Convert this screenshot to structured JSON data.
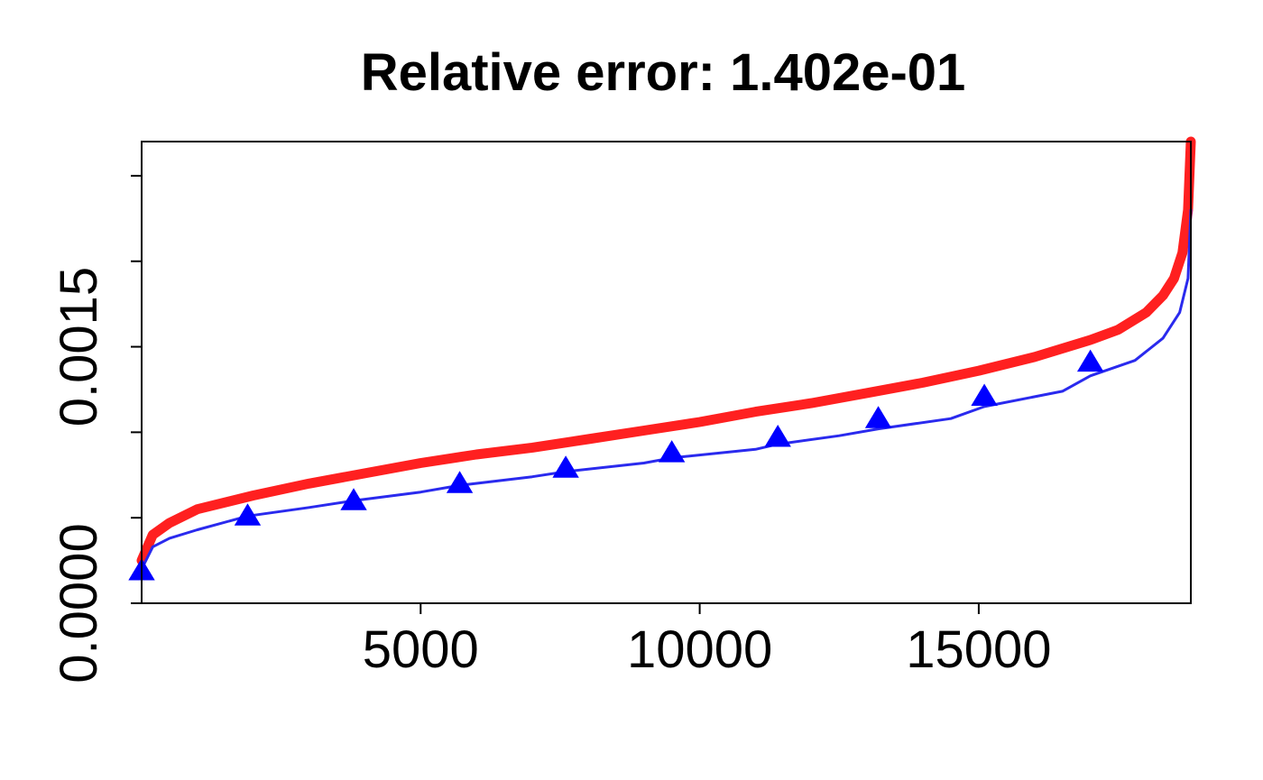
{
  "chart_data": {
    "type": "line",
    "title": "Relative error:  1.402e-01",
    "xlabel": "",
    "ylabel": "",
    "xlim": [
      1,
      18800
    ],
    "ylim": [
      0.0,
      0.0027
    ],
    "x_ticks": [
      5000,
      10000,
      15000
    ],
    "x_tick_labels": [
      "5000",
      "10000",
      "15000"
    ],
    "y_ticks": [
      0.0,
      0.0005,
      0.001,
      0.0015,
      0.002,
      0.0025
    ],
    "y_tick_labels": [
      "0.0000",
      "",
      "",
      "0.0015",
      "",
      ""
    ],
    "grid": false,
    "legend": "none",
    "colors": {
      "red_series": "#ff2020",
      "blue_series": "#2a2aee",
      "markers": "#0000ff",
      "axes": "#000000"
    },
    "series": [
      {
        "style": "thick-line",
        "color": "#ff2020",
        "x": [
          1,
          200,
          500,
          1000,
          2000,
          3000,
          4000,
          5000,
          6000,
          7000,
          8000,
          9000,
          10000,
          11000,
          12000,
          13000,
          14000,
          15000,
          16000,
          17000,
          17500,
          18000,
          18300,
          18500,
          18650,
          18750,
          18800
        ],
        "y": [
          0.00025,
          0.0004,
          0.00047,
          0.00055,
          0.00063,
          0.0007,
          0.00076,
          0.00082,
          0.00087,
          0.00091,
          0.00096,
          0.00101,
          0.00106,
          0.00112,
          0.00117,
          0.00123,
          0.00129,
          0.00136,
          0.00144,
          0.00154,
          0.0016,
          0.0017,
          0.0018,
          0.0019,
          0.00205,
          0.0023,
          0.0027
        ]
      },
      {
        "style": "line-with-triangle-markers",
        "color": "#2a2aee",
        "x": [
          1,
          200,
          500,
          1000,
          1900,
          3000,
          3800,
          5000,
          5700,
          7000,
          7600,
          9000,
          9500,
          11000,
          11400,
          12500,
          13200,
          14500,
          15100,
          16500,
          17000,
          17800,
          18300,
          18600,
          18750,
          18800
        ],
        "y": [
          0.0002,
          0.00033,
          0.00038,
          0.00043,
          0.00051,
          0.00056,
          0.0006,
          0.00065,
          0.00069,
          0.00074,
          0.00077,
          0.00082,
          0.00085,
          0.0009,
          0.00093,
          0.00098,
          0.00102,
          0.00108,
          0.00115,
          0.00124,
          0.00133,
          0.00142,
          0.00155,
          0.0017,
          0.0019,
          0.0023
        ]
      }
    ],
    "markers": {
      "shape": "triangle",
      "color": "#0000ff",
      "x": [
        1,
        1900,
        3800,
        5700,
        7600,
        9500,
        11400,
        13200,
        15100,
        17000
      ],
      "y": [
        0.00019,
        0.00051,
        0.0006,
        0.0007,
        0.00079,
        0.00088,
        0.00097,
        0.00108,
        0.00121,
        0.00141
      ]
    }
  }
}
